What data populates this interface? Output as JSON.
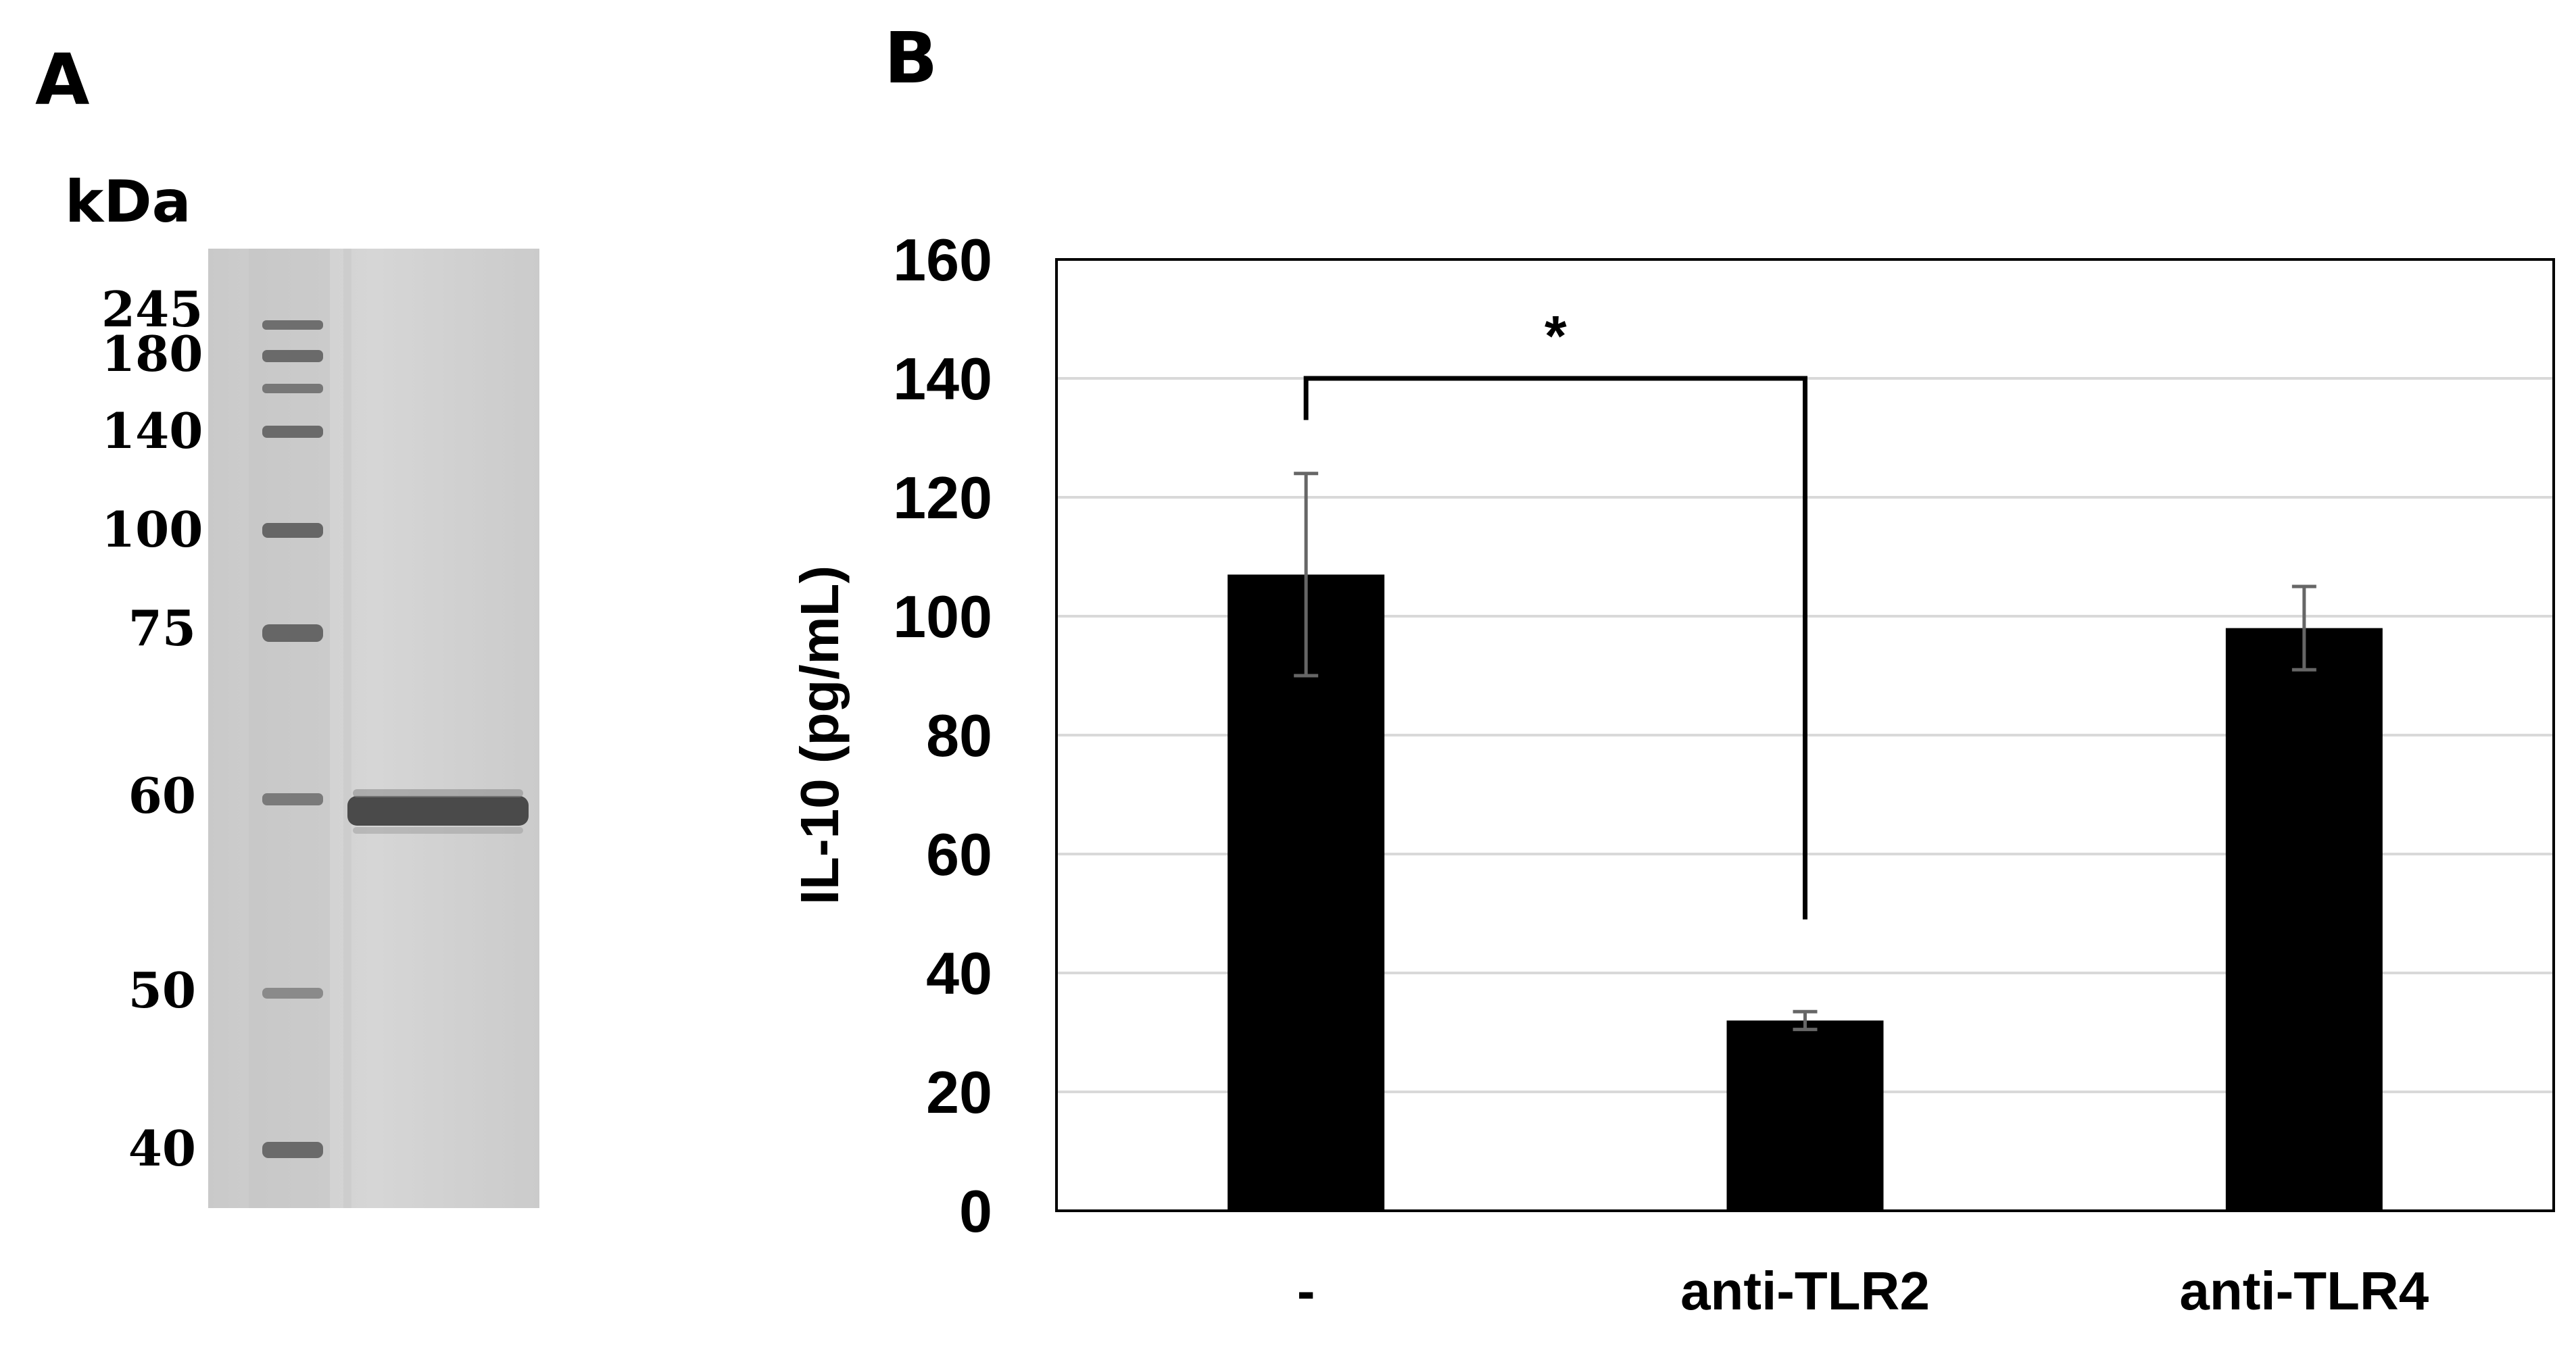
{
  "panel_a": {
    "letter": "A",
    "unit_label": "kDa",
    "markers": [
      {
        "label": "245",
        "kda": 245
      },
      {
        "label": "180",
        "kda": 180
      },
      {
        "label": "140",
        "kda": 140
      },
      {
        "label": "100",
        "kda": 100
      },
      {
        "label": "75",
        "kda": 75
      },
      {
        "label": "60",
        "kda": 60
      },
      {
        "label": "50",
        "kda": 50
      },
      {
        "label": "40",
        "kda": 40
      }
    ],
    "sample_band_kda": 58
  },
  "panel_b": {
    "letter": "B"
  },
  "chart_data": {
    "type": "bar",
    "title": "",
    "xlabel": "",
    "ylabel": "IL-10 (pg/mL)",
    "categories": [
      "-",
      "anti-TLR2",
      "anti-TLR4"
    ],
    "values": [
      107,
      32,
      98
    ],
    "error": [
      17,
      1.5,
      7
    ],
    "ylim": [
      0,
      160
    ],
    "yticks": [
      0,
      20,
      40,
      60,
      80,
      100,
      120,
      140,
      160
    ],
    "grid": true,
    "legend": "none",
    "significance": [
      {
        "from": "-",
        "to": "anti-TLR2",
        "label": "*"
      }
    ],
    "bar_color": "#000000",
    "error_color": "#666666"
  }
}
